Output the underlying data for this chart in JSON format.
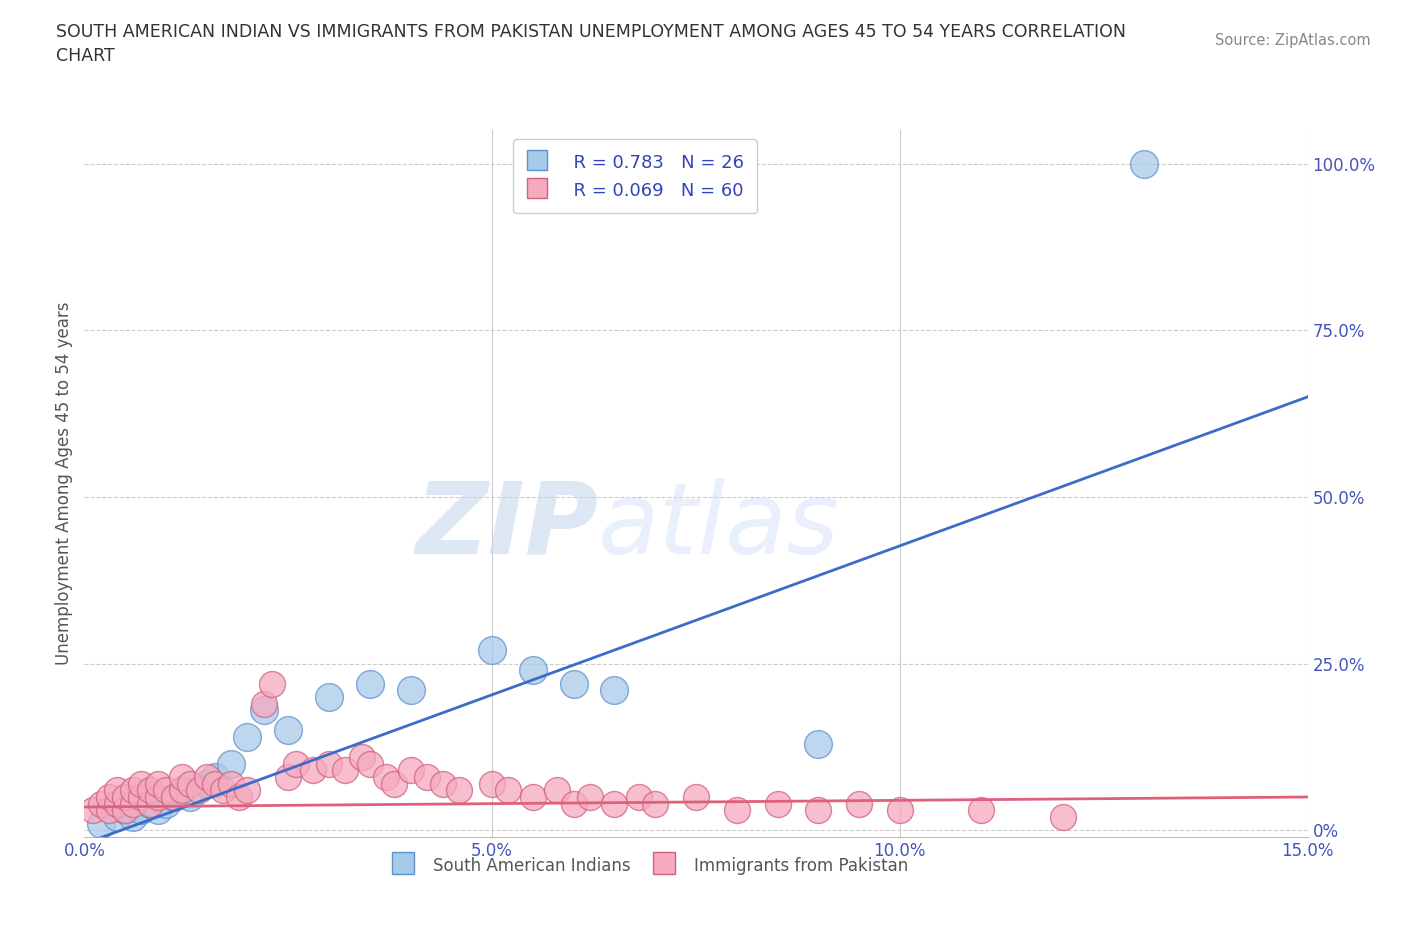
{
  "title": "SOUTH AMERICAN INDIAN VS IMMIGRANTS FROM PAKISTAN UNEMPLOYMENT AMONG AGES 45 TO 54 YEARS CORRELATION\nCHART",
  "source_text": "Source: ZipAtlas.com",
  "watermark_zip": "ZIP",
  "watermark_atlas": "atlas",
  "ylabel": "Unemployment Among Ages 45 to 54 years",
  "xlim": [
    0.0,
    0.15
  ],
  "ylim": [
    -0.01,
    1.05
  ],
  "xticks": [
    0.0,
    0.05,
    0.1,
    0.15
  ],
  "xticklabels": [
    "0.0%",
    "5.0%",
    "10.0%",
    "15.0%"
  ],
  "yticks": [
    0.0,
    0.25,
    0.5,
    0.75,
    1.0
  ],
  "yticklabels": [
    "0%",
    "25.0%",
    "50.0%",
    "75.0%",
    "100.0%"
  ],
  "legend_R1": "R = 0.783",
  "legend_N1": "N = 26",
  "legend_R2": "R = 0.069",
  "legend_N2": "N = 60",
  "blue_color": "#A8CAEA",
  "blue_edge_color": "#6090CC",
  "pink_color": "#F5AABE",
  "pink_edge_color": "#D06080",
  "blue_line_color": "#3A6CC8",
  "pink_line_color": "#E0607A",
  "label1": "South American Indians",
  "label2": "Immigrants from Pakistan",
  "blue_x": [
    0.002,
    0.004,
    0.005,
    0.006,
    0.007,
    0.008,
    0.009,
    0.01,
    0.011,
    0.012,
    0.013,
    0.015,
    0.016,
    0.018,
    0.02,
    0.022,
    0.025,
    0.03,
    0.035,
    0.04,
    0.05,
    0.055,
    0.06,
    0.065,
    0.09,
    0.13
  ],
  "blue_y": [
    0.01,
    0.02,
    0.03,
    0.02,
    0.03,
    0.04,
    0.03,
    0.04,
    0.05,
    0.06,
    0.05,
    0.07,
    0.08,
    0.1,
    0.14,
    0.18,
    0.15,
    0.2,
    0.22,
    0.21,
    0.27,
    0.24,
    0.22,
    0.21,
    0.13,
    1.0
  ],
  "pink_x": [
    0.001,
    0.002,
    0.003,
    0.003,
    0.004,
    0.004,
    0.005,
    0.005,
    0.006,
    0.006,
    0.007,
    0.007,
    0.008,
    0.008,
    0.009,
    0.009,
    0.01,
    0.011,
    0.012,
    0.012,
    0.013,
    0.014,
    0.015,
    0.016,
    0.017,
    0.018,
    0.019,
    0.02,
    0.022,
    0.023,
    0.025,
    0.026,
    0.028,
    0.03,
    0.032,
    0.034,
    0.035,
    0.037,
    0.038,
    0.04,
    0.042,
    0.044,
    0.046,
    0.05,
    0.052,
    0.055,
    0.058,
    0.06,
    0.062,
    0.065,
    0.068,
    0.07,
    0.075,
    0.08,
    0.085,
    0.09,
    0.095,
    0.1,
    0.11,
    0.12
  ],
  "pink_y": [
    0.03,
    0.04,
    0.03,
    0.05,
    0.04,
    0.06,
    0.03,
    0.05,
    0.04,
    0.06,
    0.05,
    0.07,
    0.04,
    0.06,
    0.05,
    0.07,
    0.06,
    0.05,
    0.06,
    0.08,
    0.07,
    0.06,
    0.08,
    0.07,
    0.06,
    0.07,
    0.05,
    0.06,
    0.19,
    0.22,
    0.08,
    0.1,
    0.09,
    0.1,
    0.09,
    0.11,
    0.1,
    0.08,
    0.07,
    0.09,
    0.08,
    0.07,
    0.06,
    0.07,
    0.06,
    0.05,
    0.06,
    0.04,
    0.05,
    0.04,
    0.05,
    0.04,
    0.05,
    0.03,
    0.04,
    0.03,
    0.04,
    0.03,
    0.03,
    0.02
  ],
  "grid_color": "#CCCCCC",
  "bg_color": "#FFFFFF"
}
